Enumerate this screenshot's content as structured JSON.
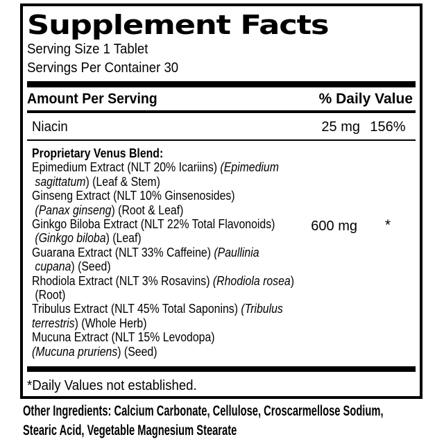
{
  "label": {
    "title": "Supplement Facts",
    "serving_size": "Serving Size 1 Tablet",
    "servings_per_container": "Servings Per Container 30",
    "columns": {
      "amount_header": "Amount Per Serving",
      "dv_header": "% Daily Value"
    },
    "nutrients": [
      {
        "name": "Niacin",
        "amount": "25 mg",
        "dv": "156%"
      }
    ],
    "blend": {
      "amount": "600 mg",
      "dv": "*",
      "lines": [
        [
          {
            "t": "Proprietary Venus Blend:",
            "b": true
          }
        ],
        [
          {
            "t": "Epimedium Extract (NLT 20% Icariins) "
          },
          {
            "t": "(Epimedium",
            "i": true
          }
        ],
        [
          {
            "t": " "
          },
          {
            "t": "sagittatum",
            "i": true
          },
          {
            "t": ") (Leaf & Stem)"
          }
        ],
        [
          {
            "t": "Ginseng Extract (NLT 10% Ginsenosides)"
          }
        ],
        [
          {
            "t": " "
          },
          {
            "t": "(Panax ginseng",
            "i": true
          },
          {
            "t": ") (Root & Leaf)"
          }
        ],
        [
          {
            "t": "Ginkgo Biloba Extract (NLT 22% Total Flavonoids)"
          }
        ],
        [
          {
            "t": " "
          },
          {
            "t": "(Ginkgo biloba",
            "i": true
          },
          {
            "t": ") (Leaf)"
          }
        ],
        [
          {
            "t": "Guarana Extract (NLT 33% Caffeine) "
          },
          {
            "t": "(Paullinia",
            "i": true
          }
        ],
        [
          {
            "t": " "
          },
          {
            "t": "cupana",
            "i": true
          },
          {
            "t": ") (Seed)"
          }
        ],
        [
          {
            "t": "Rhodiola Extract (NLT 3% Rosavins) "
          },
          {
            "t": "(Rhodiola rosea",
            "i": true
          },
          {
            "t": ")"
          }
        ],
        [
          {
            "t": " (Root)"
          }
        ],
        [
          {
            "t": "Tribulus Extract (NLT 45% Total Saponins) "
          },
          {
            "t": "(Tribulus",
            "i": true
          }
        ],
        [
          {
            "t": "terrestris",
            "i": true
          },
          {
            "t": ") (Whole Herb)"
          }
        ],
        [
          {
            "t": "Mucuna Extract (NLT 15% Levodopa)"
          }
        ],
        [
          {
            "t": "(Mucuna pruriens",
            "i": true
          },
          {
            "t": ") (Seed)"
          }
        ]
      ]
    },
    "footnote": "*Daily Values not established."
  },
  "other_ingredients": {
    "lines": [
      "Other Ingredients: Calcium Carbonate, Cellulose, Croscarmellose Sodium,",
      "Stearic Acid, Vegetable Magnesium Stearate"
    ]
  },
  "colors": {
    "ink": "#000000",
    "background": "#ffffff"
  }
}
